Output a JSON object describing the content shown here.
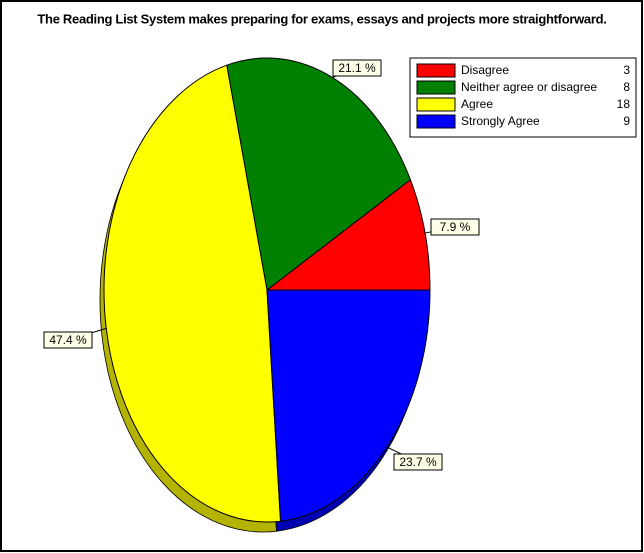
{
  "chart_data": {
    "type": "pie",
    "title": "The Reading List System makes preparing for exams, essays and projects more straightforward.",
    "categories": [
      "Disagree",
      "Neither agree or disagree",
      "Agree",
      "Strongly Agree"
    ],
    "counts": [
      3,
      8,
      18,
      9
    ],
    "values": [
      7.9,
      21.1,
      47.4,
      23.7
    ],
    "value_labels": [
      "7.9 %",
      "21.1 %",
      "47.4 %",
      "23.7 %"
    ],
    "colors": [
      "#ff0000",
      "#008000",
      "#ffff00",
      "#0000ff"
    ],
    "legend": "upper right"
  }
}
